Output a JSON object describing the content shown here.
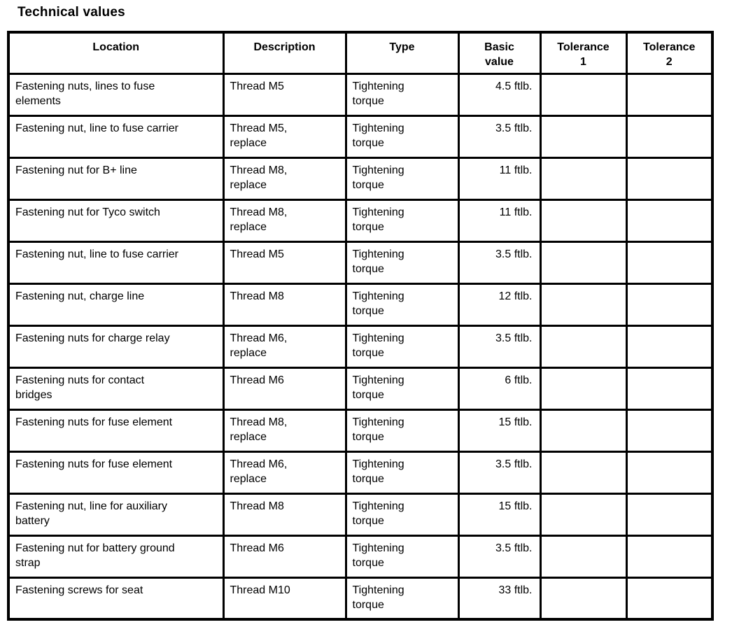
{
  "page_title": "Technical values",
  "table": {
    "columns": [
      {
        "label": "Location"
      },
      {
        "label": "Description"
      },
      {
        "label": "Type"
      },
      {
        "label": "Basic\nvalue"
      },
      {
        "label": "Tolerance\n1"
      },
      {
        "label": "Tolerance\n2"
      }
    ],
    "rows": [
      {
        "location": "Fastening nuts, lines to fuse\nelements",
        "description": "Thread M5",
        "type": "Tightening\ntorque",
        "basic_value": "4.5 ftlb.",
        "tolerance_1": "",
        "tolerance_2": ""
      },
      {
        "location": "Fastening nut, line to fuse carrier",
        "description": "Thread M5,\nreplace",
        "type": "Tightening\ntorque",
        "basic_value": "3.5 ftlb.",
        "tolerance_1": "",
        "tolerance_2": ""
      },
      {
        "location": "Fastening nut for B+ line",
        "description": "Thread M8,\nreplace",
        "type": "Tightening\ntorque",
        "basic_value": "11 ftlb.",
        "tolerance_1": "",
        "tolerance_2": ""
      },
      {
        "location": "Fastening nut for Tyco switch",
        "description": "Thread M8,\nreplace",
        "type": "Tightening\ntorque",
        "basic_value": "11 ftlb.",
        "tolerance_1": "",
        "tolerance_2": ""
      },
      {
        "location": "Fastening nut, line to fuse carrier",
        "description": "Thread M5",
        "type": "Tightening\ntorque",
        "basic_value": "3.5 ftlb.",
        "tolerance_1": "",
        "tolerance_2": ""
      },
      {
        "location": "Fastening nut, charge line",
        "description": "Thread M8",
        "type": "Tightening\ntorque",
        "basic_value": "12 ftlb.",
        "tolerance_1": "",
        "tolerance_2": ""
      },
      {
        "location": "Fastening nuts for charge relay",
        "description": "Thread M6,\nreplace",
        "type": "Tightening\ntorque",
        "basic_value": "3.5 ftlb.",
        "tolerance_1": "",
        "tolerance_2": ""
      },
      {
        "location": "Fastening nuts for contact\nbridges",
        "description": "Thread M6",
        "type": "Tightening\ntorque",
        "basic_value": "6 ftlb.",
        "tolerance_1": "",
        "tolerance_2": ""
      },
      {
        "location": "Fastening nuts for fuse element",
        "description": "Thread M8,\nreplace",
        "type": "Tightening\ntorque",
        "basic_value": "15 ftlb.",
        "tolerance_1": "",
        "tolerance_2": ""
      },
      {
        "location": "Fastening nuts for fuse element",
        "description": "Thread M6,\nreplace",
        "type": "Tightening\ntorque",
        "basic_value": "3.5 ftlb.",
        "tolerance_1": "",
        "tolerance_2": ""
      },
      {
        "location": "Fastening nut, line for auxiliary\nbattery",
        "description": "Thread M8",
        "type": "Tightening\ntorque",
        "basic_value": "15 ftlb.",
        "tolerance_1": "",
        "tolerance_2": ""
      },
      {
        "location": "Fastening nut for battery ground\nstrap",
        "description": "Thread M6",
        "type": "Tightening\ntorque",
        "basic_value": "3.5 ftlb.",
        "tolerance_1": "",
        "tolerance_2": ""
      },
      {
        "location": "Fastening screws for seat",
        "description": "Thread M10",
        "type": "Tightening\ntorque",
        "basic_value": "33 ftlb.",
        "tolerance_1": "",
        "tolerance_2": ""
      }
    ]
  }
}
